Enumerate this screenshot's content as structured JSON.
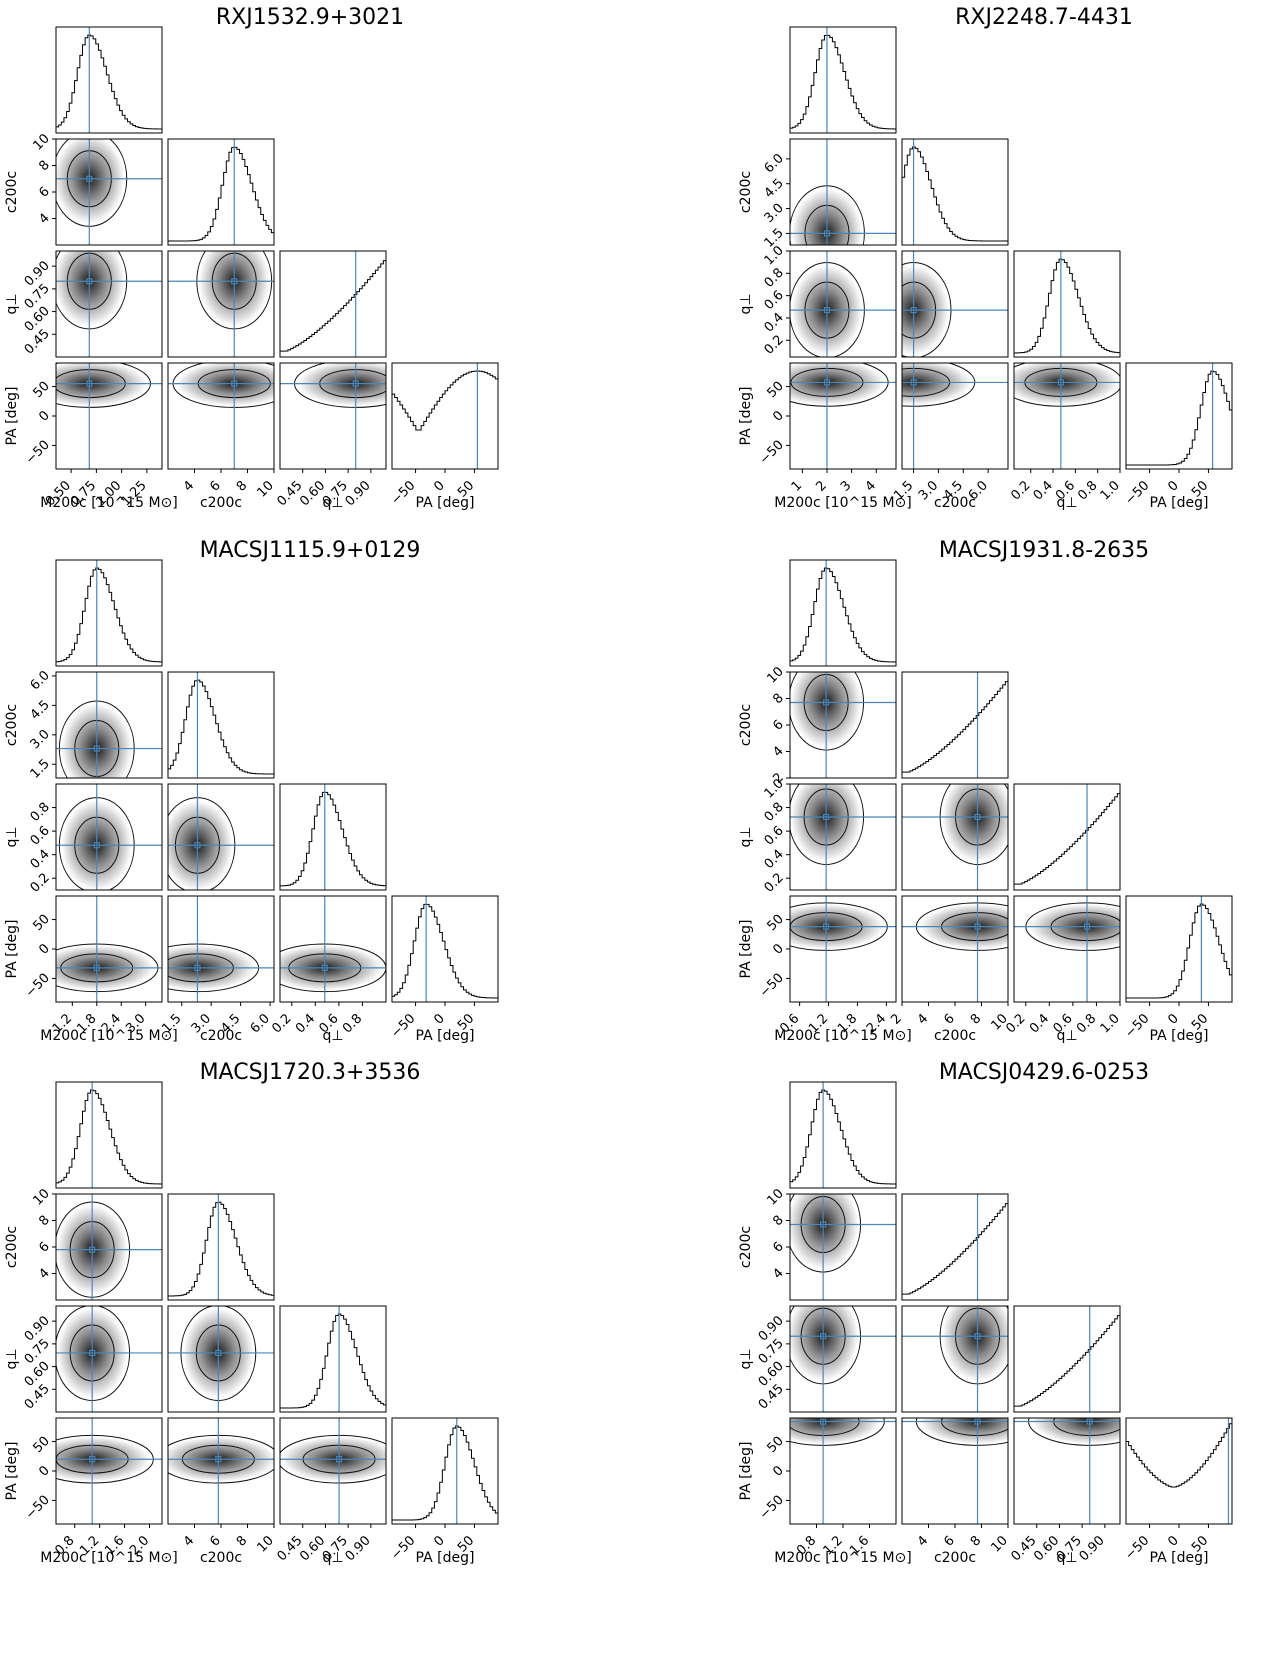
{
  "figure": {
    "kind": "corner plots of posterior distributions",
    "axis_labels": {
      "mass": "M200c [10^15 M⊙]",
      "conc": "c200c",
      "q": "q⊥",
      "pa": "PA [deg]"
    }
  },
  "chart_data": [
    {
      "type": "corner",
      "title": "RXJ1532.9+3021",
      "params": [
        "mass",
        "conc",
        "q",
        "pa"
      ],
      "ranges": {
        "mass": [
          0.35,
          1.4
        ],
        "conc": [
          2.0,
          10.0
        ],
        "q": [
          0.3,
          1.0
        ],
        "pa": [
          -90,
          90
        ]
      },
      "ticks": {
        "mass": [
          "0.50",
          "0.75",
          "1.00",
          "1.25"
        ],
        "conc": [
          "4",
          "6",
          "8",
          "10"
        ],
        "q": [
          "0.45",
          "0.60",
          "0.75",
          "0.90"
        ],
        "pa": [
          "−50",
          "0",
          "50"
        ]
      },
      "truth": {
        "mass": 0.68,
        "conc": 7.0,
        "q": 0.8,
        "pa": 55
      },
      "marginal_shape": {
        "mass": "peak",
        "conc": "peak",
        "q": "rising",
        "pa": "bimodal"
      }
    },
    {
      "type": "corner",
      "title": "RXJ2248.7-4431",
      "params": [
        "mass",
        "conc",
        "q",
        "pa"
      ],
      "ranges": {
        "mass": [
          0.5,
          4.8
        ],
        "conc": [
          0.8,
          7.2
        ],
        "q": [
          0.05,
          1.0
        ],
        "pa": [
          -90,
          90
        ]
      },
      "ticks": {
        "mass": [
          "1",
          "2",
          "3",
          "4"
        ],
        "conc": [
          "1.5",
          "3.0",
          "4.5",
          "6.0"
        ],
        "q": [
          "0.2",
          "0.4",
          "0.6",
          "0.8",
          "1.0"
        ],
        "pa": [
          "−50",
          "0",
          "50"
        ]
      },
      "truth": {
        "mass": 2.0,
        "conc": 1.5,
        "q": 0.47,
        "pa": 57
      },
      "marginal_shape": {
        "mass": "peak",
        "conc": "peak",
        "q": "peak",
        "pa": "peak"
      }
    },
    {
      "type": "corner",
      "title": "MACSJ1115.9+0129",
      "params": [
        "mass",
        "conc",
        "q",
        "pa"
      ],
      "ranges": {
        "mass": [
          0.8,
          3.4
        ],
        "conc": [
          0.8,
          6.2
        ],
        "q": [
          0.1,
          1.0
        ],
        "pa": [
          -90,
          90
        ]
      },
      "ticks": {
        "mass": [
          "1.2",
          "1.8",
          "2.4",
          "3.0"
        ],
        "conc": [
          "1.5",
          "3.0",
          "4.5",
          "6.0"
        ],
        "q": [
          "0.2",
          "0.4",
          "0.6",
          "0.8"
        ],
        "pa": [
          "−50",
          "0",
          "50"
        ]
      },
      "truth": {
        "mass": 1.8,
        "conc": 2.3,
        "q": 0.48,
        "pa": -32
      },
      "marginal_shape": {
        "mass": "peak",
        "conc": "peak",
        "q": "peak",
        "pa": "peak"
      }
    },
    {
      "type": "corner",
      "title": "MACSJ1931.8-2635",
      "params": [
        "mass",
        "conc",
        "q",
        "pa"
      ],
      "ranges": {
        "mass": [
          0.4,
          2.6
        ],
        "conc": [
          2.0,
          10.0
        ],
        "q": [
          0.1,
          1.0
        ],
        "pa": [
          -90,
          90
        ]
      },
      "ticks": {
        "mass": [
          "0.6",
          "1.2",
          "1.8",
          "2.4"
        ],
        "conc": [
          "2",
          "4",
          "6",
          "8",
          "10"
        ],
        "q": [
          "0.2",
          "0.4",
          "0.6",
          "0.8",
          "1.0"
        ],
        "pa": [
          "−50",
          "0",
          "50"
        ]
      },
      "truth": {
        "mass": 1.15,
        "conc": 7.7,
        "q": 0.72,
        "pa": 38
      },
      "marginal_shape": {
        "mass": "peak",
        "conc": "rising",
        "q": "rising",
        "pa": "peak"
      }
    },
    {
      "type": "corner",
      "title": "MACSJ1720.3+3536",
      "params": [
        "mass",
        "conc",
        "q",
        "pa"
      ],
      "ranges": {
        "mass": [
          0.5,
          2.2
        ],
        "conc": [
          2.0,
          10.0
        ],
        "q": [
          0.3,
          1.0
        ],
        "pa": [
          -90,
          90
        ]
      },
      "ticks": {
        "mass": [
          "0.8",
          "1.2",
          "1.6",
          "2.0"
        ],
        "conc": [
          "4",
          "6",
          "8",
          "10"
        ],
        "q": [
          "0.45",
          "0.60",
          "0.75",
          "0.90"
        ],
        "pa": [
          "−50",
          "0",
          "50"
        ]
      },
      "truth": {
        "mass": 1.08,
        "conc": 5.8,
        "q": 0.69,
        "pa": 20
      },
      "marginal_shape": {
        "mass": "peak",
        "conc": "peak",
        "q": "peak",
        "pa": "peak"
      }
    },
    {
      "type": "corner",
      "title": "MACSJ0429.6-0253",
      "params": [
        "mass",
        "conc",
        "q",
        "pa"
      ],
      "ranges": {
        "mass": [
          0.4,
          2.0
        ],
        "conc": [
          2.0,
          10.0
        ],
        "q": [
          0.3,
          1.0
        ],
        "pa": [
          -90,
          90
        ]
      },
      "ticks": {
        "mass": [
          "0.8",
          "1.2",
          "1.6"
        ],
        "conc": [
          "4",
          "6",
          "8",
          "10"
        ],
        "q": [
          "0.45",
          "0.60",
          "0.75",
          "0.90"
        ],
        "pa": [
          "−50",
          "0",
          "50"
        ]
      },
      "truth": {
        "mass": 0.9,
        "conc": 7.7,
        "q": 0.8,
        "pa": 84
      },
      "marginal_shape": {
        "mass": "peak",
        "conc": "rising",
        "q": "rising",
        "pa": "u-shaped"
      }
    }
  ],
  "colors": {
    "truth_line": "#4a86b8",
    "contour": "#111111",
    "density": "#000000",
    "frame": "#000000"
  }
}
